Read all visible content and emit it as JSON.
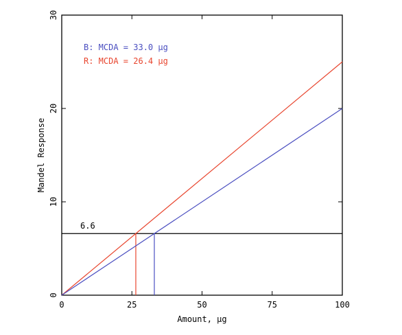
{
  "chart_data": {
    "type": "line",
    "xlabel": "Amount, μg",
    "ylabel": "Mandel Response",
    "xlim": [
      0,
      100
    ],
    "ylim": [
      0,
      30
    ],
    "xticks": [
      0,
      25,
      50,
      75,
      100
    ],
    "yticks": [
      0,
      10,
      20,
      30
    ],
    "xtick_labels": [
      "0",
      "25",
      "50",
      "75",
      "100"
    ],
    "ytick_labels": [
      "0",
      "10",
      "20",
      "30"
    ],
    "grid": false,
    "legend_placement": "top-left",
    "series": [
      {
        "name": "R:  MCDA = 26.4 μg",
        "color": "#e8452e",
        "x": [
          0,
          100
        ],
        "y": [
          0,
          25.0
        ]
      },
      {
        "name": "B:  MCDA = 33.0 μg",
        "color": "#4a4ec0",
        "x": [
          0,
          100
        ],
        "y": [
          0,
          20.0
        ]
      }
    ],
    "legend": [
      {
        "label": "B:  MCDA = 33.0 μg",
        "color": "#4a4ec0"
      },
      {
        "label": "R:  MCDA = 26.4 μg",
        "color": "#e8452e"
      }
    ],
    "threshold": {
      "y": 6.6,
      "label": "6.6",
      "color": "#000000"
    },
    "drop_lines": [
      {
        "x": 26.4,
        "y": 6.6,
        "color": "#e8452e"
      },
      {
        "x": 33.0,
        "y": 6.6,
        "color": "#4a4ec0"
      }
    ]
  }
}
